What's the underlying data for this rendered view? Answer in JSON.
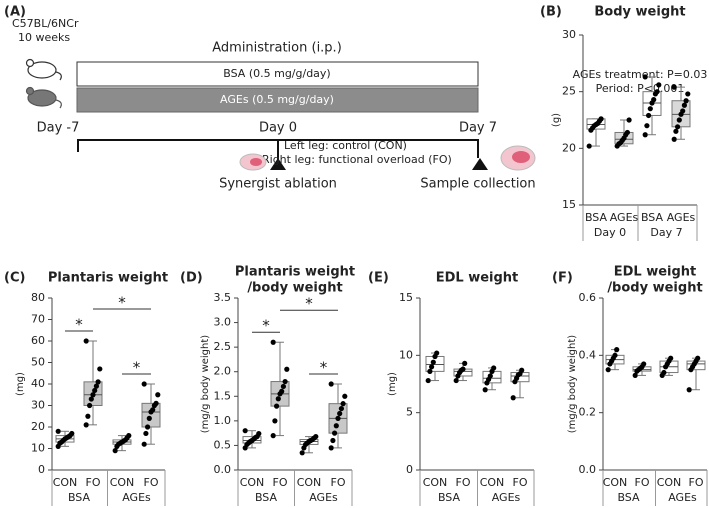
{
  "panel_a": {
    "panel_label": "(A)",
    "strain": "C57BL/6NCr",
    "age": "10 weeks",
    "administration": "Administration (i.p.)",
    "bsa_bar": "BSA (0.5 mg/g/day)",
    "ages_bar": "AGEs (0.5 mg/g/day)",
    "day_start": "Day -7",
    "day_mid": "Day 0",
    "day_end": "Day 7",
    "left_leg": "Left leg: control (CON)",
    "right_leg": "Right leg: functional overload (FO)",
    "surgery": "Synergist ablation",
    "sampling": "Sample collection"
  },
  "chart_data": [
    {
      "type": "box",
      "panel_label": "(B)",
      "title": [
        "Body weight"
      ],
      "ylabel": "(g)",
      "annotations": [
        "AGEs treatment: P=0.03",
        "Period: P<0.001"
      ],
      "categories": [
        "BSA",
        "AGEs",
        "BSA",
        "AGEs"
      ],
      "group_labels": [
        "Day 0",
        "Day 7"
      ],
      "ylim": [
        15,
        30
      ],
      "yticks": [
        15,
        20,
        25,
        30
      ],
      "box_colors": [
        "#ffffff",
        "#d9d9d9",
        "#ffffff",
        "#d9d9d9"
      ],
      "boxes": [
        {
          "stats": [
            20.2,
            21.7,
            22.1,
            22.6,
            22.6
          ],
          "points": [
            20.2,
            21.6,
            21.8,
            22.0,
            22.1,
            22.2,
            22.4,
            22.6
          ]
        },
        {
          "stats": [
            20.2,
            20.4,
            20.8,
            21.4,
            22.5
          ],
          "points": [
            20.2,
            20.4,
            20.5,
            20.7,
            20.9,
            21.2,
            21.4,
            22.5
          ]
        },
        {
          "stats": [
            21.2,
            22.9,
            24.0,
            25.0,
            26.3
          ],
          "points": [
            21.2,
            22.0,
            22.9,
            23.5,
            24.0,
            24.3,
            24.8,
            25.0,
            25.6,
            26.3
          ]
        },
        {
          "stats": [
            20.8,
            21.9,
            23.0,
            24.2,
            25.4
          ],
          "points": [
            20.8,
            21.5,
            21.9,
            22.5,
            23.0,
            23.3,
            23.8,
            24.2,
            24.8,
            25.4
          ]
        }
      ]
    },
    {
      "type": "box",
      "panel_label": "(C)",
      "title": [
        "Plantaris weight"
      ],
      "ylabel": "(mg)",
      "categories": [
        "CON",
        "FO",
        "CON",
        "FO"
      ],
      "group_labels": [
        "BSA",
        "AGEs"
      ],
      "ylim": [
        0,
        80
      ],
      "yticks": [
        0,
        10,
        20,
        30,
        40,
        50,
        60,
        70,
        80
      ],
      "box_colors": [
        "#ffffff",
        "#c8c8c8",
        "#ffffff",
        "#c8c8c8"
      ],
      "significance": [
        {
          "label": "*",
          "groups": [
            0,
            1
          ]
        },
        {
          "label": "*",
          "groups": [
            2,
            3
          ]
        },
        {
          "label": "*",
          "groups": [
            1,
            3
          ]
        }
      ],
      "boxes": [
        {
          "stats": [
            11,
            13,
            14.5,
            16,
            18
          ],
          "points": [
            11,
            12.5,
            13,
            13.8,
            14.5,
            15,
            15.5,
            16,
            17,
            18
          ]
        },
        {
          "stats": [
            21,
            30,
            35,
            41,
            60
          ],
          "points": [
            21,
            25,
            30,
            33,
            35,
            37,
            39,
            41,
            47,
            60
          ]
        },
        {
          "stats": [
            9,
            12,
            13,
            14,
            16
          ],
          "points": [
            9,
            11,
            12,
            12.5,
            13,
            13.5,
            14,
            15,
            16
          ]
        },
        {
          "stats": [
            12,
            20,
            27,
            31,
            40
          ],
          "points": [
            12,
            17,
            20,
            24,
            27,
            28,
            30,
            31,
            35,
            40
          ]
        }
      ]
    },
    {
      "type": "box",
      "panel_label": "(D)",
      "title": [
        "Plantaris weight",
        "/body weight"
      ],
      "ylabel": "(mg/g body weight)",
      "categories": [
        "CON",
        "FO",
        "CON",
        "FO"
      ],
      "group_labels": [
        "BSA",
        "AGEs"
      ],
      "ylim": [
        0,
        3.5
      ],
      "yticks": [
        {
          "value": 0,
          "label": "0.0"
        },
        0.5,
        {
          "value": 1,
          "label": "1.0"
        },
        1.5,
        {
          "value": 2,
          "label": "2.0"
        },
        2.5,
        {
          "value": 3,
          "label": "3.0"
        },
        3.5
      ],
      "box_colors": [
        "#ffffff",
        "#c8c8c8",
        "#ffffff",
        "#c8c8c8"
      ],
      "significance": [
        {
          "label": "*",
          "groups": [
            0,
            1
          ]
        },
        {
          "label": "*",
          "groups": [
            2,
            3
          ]
        },
        {
          "label": "*",
          "groups": [
            1,
            3
          ]
        }
      ],
      "boxes": [
        {
          "stats": [
            0.45,
            0.55,
            0.6,
            0.68,
            0.8
          ],
          "points": [
            0.45,
            0.52,
            0.55,
            0.58,
            0.6,
            0.63,
            0.66,
            0.68,
            0.74,
            0.8
          ]
        },
        {
          "stats": [
            0.7,
            1.3,
            1.55,
            1.8,
            2.6
          ],
          "points": [
            0.7,
            1.0,
            1.3,
            1.45,
            1.55,
            1.6,
            1.7,
            1.8,
            2.05,
            2.6
          ]
        },
        {
          "stats": [
            0.35,
            0.52,
            0.58,
            0.62,
            0.68
          ],
          "points": [
            0.35,
            0.45,
            0.52,
            0.55,
            0.58,
            0.6,
            0.62,
            0.65,
            0.68
          ]
        },
        {
          "stats": [
            0.45,
            0.75,
            1.05,
            1.35,
            1.75
          ],
          "points": [
            0.45,
            0.6,
            0.75,
            0.9,
            1.05,
            1.15,
            1.25,
            1.35,
            1.5,
            1.75
          ]
        }
      ]
    },
    {
      "type": "box",
      "panel_label": "(E)",
      "title": [
        "EDL weight"
      ],
      "ylabel": "(mg)",
      "categories": [
        "CON",
        "FO",
        "CON",
        "FO"
      ],
      "group_labels": [
        "BSA",
        "AGEs"
      ],
      "ylim": [
        0,
        15
      ],
      "yticks": [
        0,
        5,
        10,
        15
      ],
      "box_colors": [
        "#ffffff",
        "#ffffff",
        "#ffffff",
        "#ffffff"
      ],
      "boxes": [
        {
          "stats": [
            7.8,
            8.6,
            9.2,
            9.9,
            10.2
          ],
          "points": [
            7.8,
            8.6,
            9.0,
            9.4,
            9.9,
            10.2
          ]
        },
        {
          "stats": [
            7.8,
            8.2,
            8.6,
            8.8,
            9.3
          ],
          "points": [
            7.8,
            8.2,
            8.5,
            8.7,
            8.8,
            9.3
          ]
        },
        {
          "stats": [
            7.0,
            7.6,
            8.0,
            8.6,
            8.9
          ],
          "points": [
            7.0,
            7.6,
            7.9,
            8.2,
            8.6,
            8.9
          ]
        },
        {
          "stats": [
            6.3,
            7.7,
            8.2,
            8.5,
            8.7
          ],
          "points": [
            6.3,
            7.7,
            8.0,
            8.3,
            8.4,
            8.7
          ]
        }
      ]
    },
    {
      "type": "box",
      "panel_label": "(F)",
      "title": [
        "EDL weight",
        "/body weight"
      ],
      "ylabel": "(mg/g body weight)",
      "categories": [
        "CON",
        "FO",
        "CON",
        "FO"
      ],
      "group_labels": [
        "BSA",
        "AGEs"
      ],
      "ylim": [
        0,
        0.6
      ],
      "yticks": [
        {
          "value": 0,
          "label": "0.0"
        },
        0.2,
        0.4,
        0.6
      ],
      "box_colors": [
        "#ffffff",
        "#ffffff",
        "#ffffff",
        "#ffffff"
      ],
      "boxes": [
        {
          "stats": [
            0.35,
            0.37,
            0.385,
            0.4,
            0.42
          ],
          "points": [
            0.35,
            0.37,
            0.38,
            0.39,
            0.4,
            0.42
          ]
        },
        {
          "stats": [
            0.33,
            0.345,
            0.35,
            0.36,
            0.37
          ],
          "points": [
            0.33,
            0.345,
            0.35,
            0.355,
            0.36,
            0.37
          ]
        },
        {
          "stats": [
            0.33,
            0.34,
            0.36,
            0.38,
            0.39
          ],
          "points": [
            0.33,
            0.34,
            0.36,
            0.37,
            0.38,
            0.39
          ]
        },
        {
          "stats": [
            0.28,
            0.35,
            0.37,
            0.38,
            0.39
          ],
          "points": [
            0.28,
            0.35,
            0.36,
            0.37,
            0.38,
            0.39
          ]
        }
      ]
    }
  ]
}
